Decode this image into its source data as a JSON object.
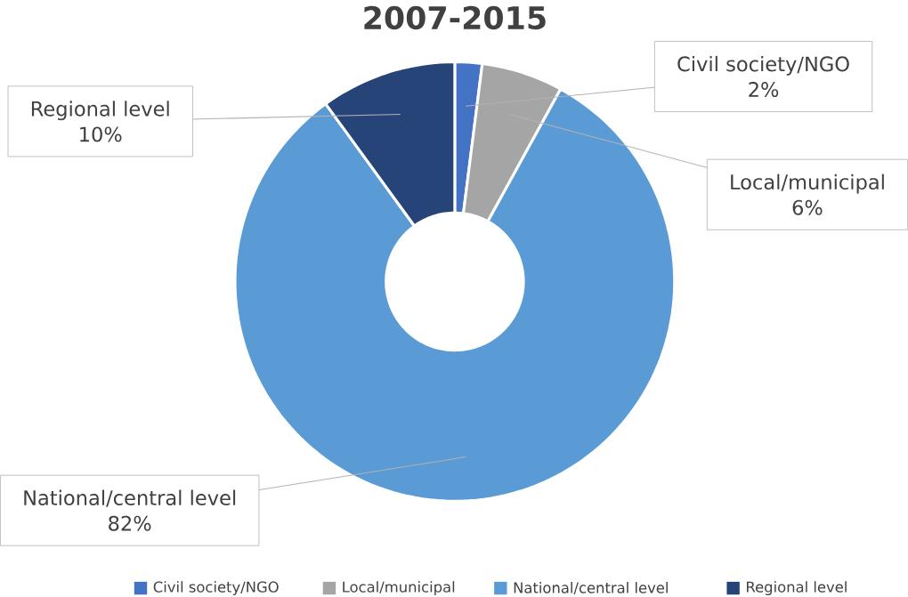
{
  "chart_data": {
    "type": "donut",
    "title": "2007-2015",
    "categories": [
      "Civil society/NGO",
      "Local/municipal",
      "National/central level",
      "Regional level"
    ],
    "values": [
      2,
      6,
      82,
      10
    ],
    "value_labels": [
      "2%",
      "6%",
      "82%",
      "10%"
    ],
    "colors": [
      "#4472c4",
      "#a5a5a5",
      "#5b9bd5",
      "#264478"
    ],
    "legend": "bottom"
  }
}
